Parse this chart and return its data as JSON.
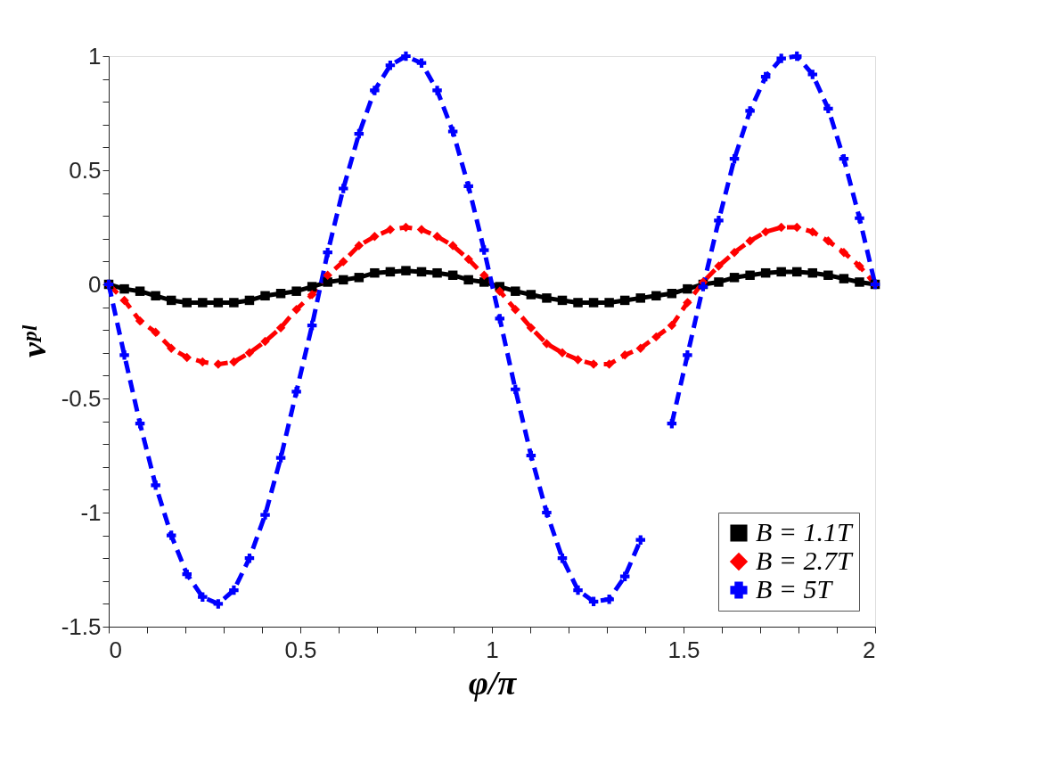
{
  "chart_data": {
    "type": "line",
    "xlabel": "φ/π",
    "ylabel": "νᵖˡ",
    "x": [
      0,
      0.0408,
      0.0816,
      0.1224,
      0.1633,
      0.2041,
      0.2449,
      0.2857,
      0.3265,
      0.3673,
      0.4082,
      0.449,
      0.4898,
      0.5306,
      0.5714,
      0.6122,
      0.6531,
      0.6939,
      0.7347,
      0.7755,
      0.8163,
      0.8571,
      0.898,
      0.9388,
      0.9796,
      1.0204,
      1.0612,
      1.102,
      1.1429,
      1.1837,
      1.2245,
      1.2653,
      1.3061,
      1.3469,
      1.3878,
      1.4286,
      1.4694,
      1.5102,
      1.551,
      1.5918,
      1.6327,
      1.6735,
      1.7143,
      1.7551,
      1.7959,
      1.8367,
      1.8776,
      1.9184,
      1.9592,
      2
    ],
    "series": [
      {
        "name": "B = 1.1T",
        "color": "#000000",
        "marker": "square",
        "line_style": "solid",
        "values": [
          0,
          -0.02,
          -0.03,
          -0.05,
          -0.07,
          -0.08,
          -0.08,
          -0.08,
          -0.08,
          -0.07,
          -0.05,
          -0.04,
          -0.03,
          -0.01,
          0.01,
          0.02,
          0.03,
          0.05,
          0.055,
          0.06,
          0.055,
          0.05,
          0.04,
          0.02,
          0.01,
          -0.01,
          -0.03,
          -0.045,
          -0.06,
          -0.07,
          -0.08,
          -0.08,
          -0.08,
          -0.07,
          -0.06,
          -0.05,
          -0.04,
          -0.02,
          0,
          0.01,
          0.03,
          0.04,
          0.05,
          0.055,
          0.055,
          0.05,
          0.04,
          0.025,
          0.01,
          0
        ]
      },
      {
        "name": "B = 2.7T",
        "color": "#ff0000",
        "marker": "diamond",
        "line_style": "dashed",
        "values": [
          0,
          -0.07,
          -0.16,
          -0.21,
          -0.28,
          -0.32,
          -0.34,
          -0.35,
          -0.34,
          -0.3,
          -0.25,
          -0.19,
          -0.11,
          -0.045,
          0.04,
          0.1,
          0.17,
          0.21,
          0.24,
          0.25,
          0.24,
          0.21,
          0.17,
          0.11,
          0.04,
          -0.03,
          -0.11,
          -0.19,
          -0.26,
          -0.3,
          -0.33,
          -0.35,
          -0.35,
          -0.31,
          -0.28,
          -0.23,
          -0.18,
          -0.08,
          0.01,
          0.08,
          0.14,
          0.19,
          0.23,
          0.25,
          0.25,
          0.23,
          0.19,
          0.14,
          0.08,
          0
        ]
      },
      {
        "name": "B = 5T",
        "color": "#0000ff",
        "marker": "cross",
        "line_style": "dashed",
        "values": [
          0,
          -0.31,
          -0.61,
          -0.88,
          -1.1,
          -1.27,
          -1.37,
          -1.4,
          -1.34,
          -1.2,
          -1.01,
          -0.76,
          -0.47,
          -0.18,
          0.14,
          0.42,
          0.66,
          0.85,
          0.96,
          1.0,
          0.97,
          0.85,
          0.67,
          0.43,
          0.15,
          -0.15,
          -0.46,
          -0.75,
          -1.0,
          -1.2,
          -1.34,
          -1.39,
          -1.38,
          -1.28,
          -1.12,
          null,
          -0.61,
          -0.31,
          -0.01,
          0.28,
          0.55,
          0.76,
          0.91,
          0.99,
          1.0,
          0.92,
          0.77,
          0.55,
          0.29,
          0
        ]
      }
    ],
    "xlim": [
      0,
      2
    ],
    "ylim": [
      -1.5,
      1
    ],
    "xticks": [
      0,
      {
        "value": 0.1,
        "label": null
      },
      {
        "value": 0.2,
        "label": null
      },
      {
        "value": 0.3,
        "label": null
      },
      {
        "value": 0.4,
        "label": null
      },
      0.5,
      {
        "value": 0.6,
        "label": null
      },
      {
        "value": 0.7,
        "label": null
      },
      {
        "value": 0.8,
        "label": null
      },
      {
        "value": 0.9,
        "label": null
      },
      1,
      {
        "value": 1.1,
        "label": null
      },
      {
        "value": 1.2,
        "label": null
      },
      {
        "value": 1.3,
        "label": null
      },
      {
        "value": 1.4,
        "label": null
      },
      1.5,
      {
        "value": 1.6,
        "label": null
      },
      {
        "value": 1.7,
        "label": null
      },
      {
        "value": 1.8,
        "label": null
      },
      {
        "value": 1.9,
        "label": null
      },
      2
    ],
    "yticks": [
      -1.5,
      {
        "value": -1.4,
        "label": null
      },
      {
        "value": -1.3,
        "label": null
      },
      {
        "value": -1.2,
        "label": null
      },
      {
        "value": -1.1,
        "label": null
      },
      -1,
      {
        "value": -0.9,
        "label": null
      },
      {
        "value": -0.8,
        "label": null
      },
      {
        "value": -0.7,
        "label": null
      },
      {
        "value": -0.6,
        "label": null
      },
      -0.5,
      {
        "value": -0.4,
        "label": null
      },
      {
        "value": -0.3,
        "label": null
      },
      {
        "value": -0.2,
        "label": null
      },
      {
        "value": -0.1,
        "label": null
      },
      0,
      {
        "value": 0.1,
        "label": null
      },
      {
        "value": 0.2,
        "label": null
      },
      {
        "value": 0.3,
        "label": null
      },
      {
        "value": 0.4,
        "label": null
      },
      0.5,
      {
        "value": 0.6,
        "label": null
      },
      {
        "value": 0.7,
        "label": null
      },
      {
        "value": 0.8,
        "label": null
      },
      {
        "value": 0.9,
        "label": null
      },
      1
    ],
    "grid": false,
    "legend": "bottom right"
  }
}
